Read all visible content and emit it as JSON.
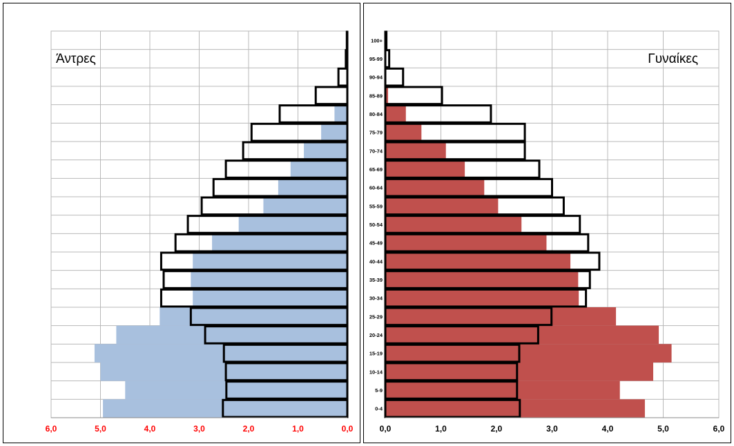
{
  "chart_data": [
    {
      "type": "bar",
      "orientation": "horizontal",
      "title": "Άντρες",
      "categories": [
        "0-4",
        "5-9",
        "10-14",
        "15-19",
        "20-24",
        "25-29",
        "30-34",
        "35-39",
        "40-44",
        "45-49",
        "50-54",
        "55-59",
        "60-64",
        "65-69",
        "70-74",
        "75-79",
        "80-84",
        "85-89",
        "90-94",
        "95-99",
        "100+"
      ],
      "series": [
        {
          "values": [
            4.95,
            4.5,
            5.0,
            5.12,
            4.68,
            3.8,
            3.13,
            3.17,
            3.13,
            2.74,
            2.2,
            1.7,
            1.4,
            1.15,
            0.88,
            0.53,
            0.26,
            0.02,
            0.01,
            0.0,
            0.0
          ]
        },
        {
          "values": [
            2.52,
            2.45,
            2.46,
            2.5,
            2.88,
            3.17,
            3.77,
            3.72,
            3.77,
            3.48,
            3.23,
            2.95,
            2.71,
            2.46,
            2.11,
            1.94,
            1.37,
            0.64,
            0.18,
            0.03,
            0.01
          ]
        }
      ],
      "xlim": [
        6.0,
        0.0
      ],
      "x_direction": "reversed",
      "x_ticks": [
        "6,0",
        "5,0",
        "4,0",
        "3,0",
        "2,0",
        "1,0",
        "0,0"
      ],
      "tick_color": "#ff0000",
      "fill_color": "#a8c0de",
      "outline_color": "#000000",
      "grid": true
    },
    {
      "type": "bar",
      "orientation": "horizontal",
      "title": "Γυναίκες",
      "categories": [
        "0-4",
        "5-9",
        "10-14",
        "15-19",
        "20-24",
        "25-29",
        "30-34",
        "35-39",
        "40-44",
        "45-49",
        "50-54",
        "55-59",
        "60-64",
        "65-69",
        "70-74",
        "75-79",
        "80-84",
        "85-89",
        "90-94",
        "95-99",
        "100+"
      ],
      "series": [
        {
          "values": [
            4.67,
            4.22,
            4.82,
            5.15,
            4.92,
            4.15,
            3.48,
            3.47,
            3.33,
            2.9,
            2.45,
            2.03,
            1.78,
            1.43,
            1.09,
            0.65,
            0.37,
            0.05,
            0.01,
            0.0,
            0.0
          ]
        },
        {
          "values": [
            2.42,
            2.37,
            2.37,
            2.41,
            2.75,
            2.99,
            3.61,
            3.68,
            3.85,
            3.65,
            3.5,
            3.21,
            3.0,
            2.77,
            2.51,
            2.51,
            1.9,
            1.02,
            0.32,
            0.07,
            0.02
          ]
        }
      ],
      "xlim": [
        0.0,
        6.0
      ],
      "x_ticks": [
        "0,0",
        "1,0",
        "2,0",
        "3,0",
        "4,0",
        "5,0",
        "6,0"
      ],
      "tick_color": "#000000",
      "fill_color": "#c0504d",
      "outline_color": "#000000",
      "grid": true
    }
  ]
}
